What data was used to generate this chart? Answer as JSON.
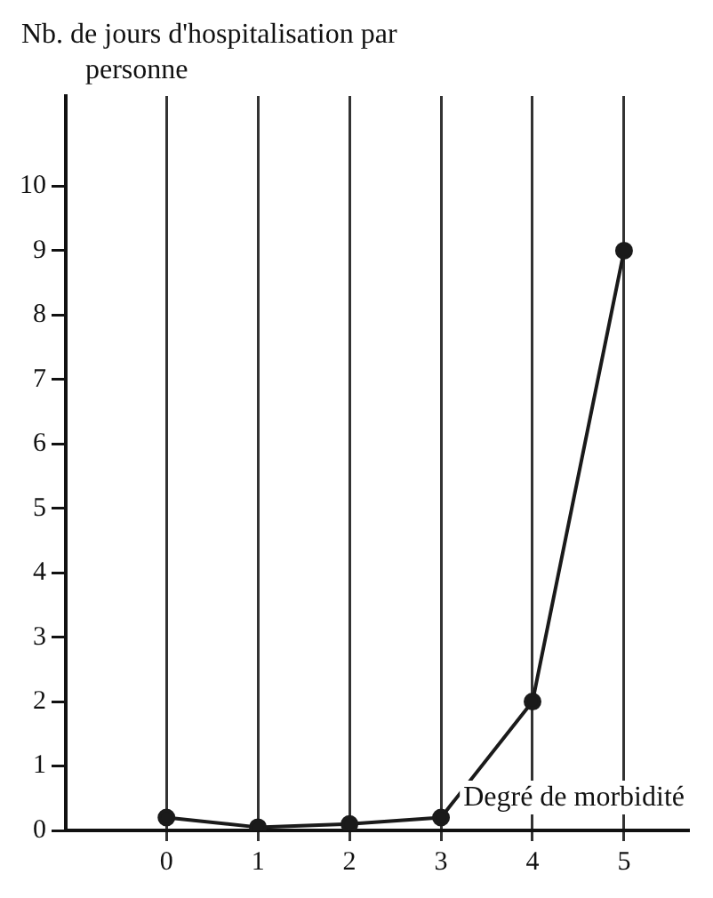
{
  "chart_data": {
    "type": "line",
    "xlabel": "Degré de morbidité",
    "ylabel": "Nb. de jours d'hospitalisation par personne",
    "x": [
      0,
      1,
      2,
      3,
      4,
      5
    ],
    "series": [
      {
        "color": "#1a1a1a",
        "values": [
          0.2,
          0.05,
          0.1,
          0.2,
          2.0,
          9.0
        ]
      }
    ],
    "xlim": [
      -1.1,
      5.7
    ],
    "xticks": [
      0,
      1,
      2,
      3,
      4,
      5
    ],
    "ylim": [
      0,
      11.4
    ],
    "yticks": [
      0,
      1,
      2,
      3,
      4,
      5,
      6,
      7,
      8,
      9,
      10
    ],
    "grid": "x",
    "marker": "circle",
    "line_style": "solid",
    "legend": false
  }
}
